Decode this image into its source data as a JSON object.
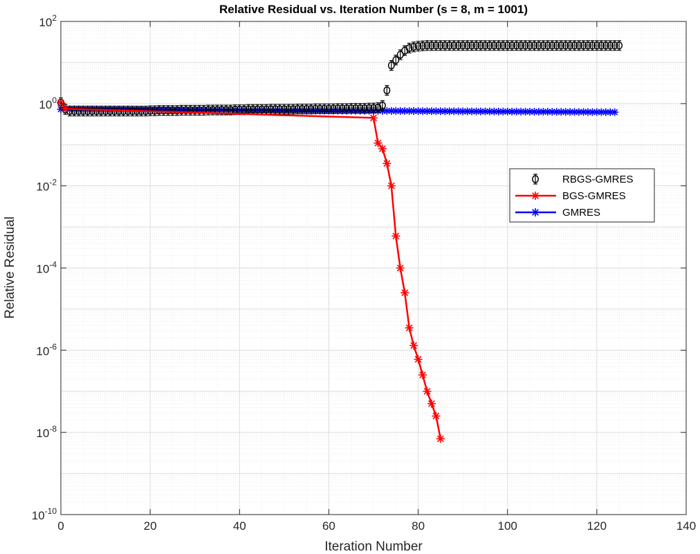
{
  "chart_data": {
    "type": "line",
    "title": "Relative Residual vs. Iteration Number (s = 8, m = 1001)",
    "xlabel": "Iteration Number",
    "ylabel": "Relative Residual",
    "xlim": [
      0,
      140
    ],
    "ylim_log10": [
      -10,
      2
    ],
    "yscale": "log",
    "grid": true,
    "minor_grid": true,
    "legend_position": "right",
    "xticks": [
      "0",
      "20",
      "40",
      "60",
      "80",
      "100",
      "120",
      "140"
    ],
    "yticks": [
      {
        "base": "10",
        "exp": "2"
      },
      {
        "base": "10",
        "exp": "0"
      },
      {
        "base": "10",
        "exp": "-2"
      },
      {
        "base": "10",
        "exp": "-4"
      },
      {
        "base": "10",
        "exp": "-6"
      },
      {
        "base": "10",
        "exp": "-8"
      },
      {
        "base": "10",
        "exp": "-10"
      }
    ],
    "series": [
      {
        "name": "RBGS-GMRES",
        "color": "#000000",
        "marker": "circle",
        "line": "none",
        "error_bars": true,
        "x": [
          0,
          1,
          2,
          3,
          4,
          5,
          6,
          7,
          8,
          9,
          10,
          11,
          12,
          13,
          14,
          15,
          16,
          17,
          18,
          19,
          20,
          21,
          22,
          23,
          24,
          25,
          26,
          27,
          28,
          29,
          30,
          31,
          32,
          33,
          34,
          35,
          36,
          37,
          38,
          39,
          40,
          41,
          42,
          43,
          44,
          45,
          46,
          47,
          48,
          49,
          50,
          51,
          52,
          53,
          54,
          55,
          56,
          57,
          58,
          59,
          60,
          61,
          62,
          63,
          64,
          65,
          66,
          67,
          68,
          69,
          70,
          71,
          72,
          73,
          74,
          75,
          76,
          77,
          78,
          79,
          80,
          81,
          82,
          83,
          84,
          85,
          86,
          87,
          88,
          89,
          90,
          91,
          92,
          93,
          94,
          95,
          96,
          97,
          98,
          99,
          100,
          101,
          102,
          103,
          104,
          105,
          106,
          107,
          108,
          109,
          110,
          111,
          112,
          113,
          114,
          115,
          116,
          117,
          118,
          119,
          120,
          121,
          122,
          123,
          124,
          125
        ],
        "y": [
          1.05,
          0.72,
          0.66,
          0.66,
          0.66,
          0.66,
          0.66,
          0.66,
          0.66,
          0.66,
          0.66,
          0.66,
          0.66,
          0.66,
          0.66,
          0.66,
          0.66,
          0.66,
          0.66,
          0.66,
          0.67,
          0.67,
          0.68,
          0.68,
          0.68,
          0.68,
          0.68,
          0.69,
          0.69,
          0.69,
          0.69,
          0.69,
          0.69,
          0.7,
          0.7,
          0.7,
          0.7,
          0.7,
          0.7,
          0.71,
          0.71,
          0.71,
          0.72,
          0.72,
          0.72,
          0.72,
          0.72,
          0.73,
          0.73,
          0.73,
          0.73,
          0.73,
          0.73,
          0.74,
          0.74,
          0.74,
          0.74,
          0.75,
          0.75,
          0.75,
          0.75,
          0.75,
          0.76,
          0.76,
          0.76,
          0.77,
          0.77,
          0.77,
          0.77,
          0.78,
          0.78,
          0.8,
          0.9,
          2.1,
          8.5,
          11.5,
          15.5,
          19.5,
          22.5,
          24,
          25,
          25.5,
          26,
          26,
          26,
          26,
          26,
          26,
          26,
          26,
          26,
          26,
          26,
          26,
          26,
          26,
          26,
          26,
          26,
          26,
          26,
          26,
          26,
          26,
          26,
          26,
          26,
          26,
          26,
          26,
          26,
          26,
          26,
          26,
          26,
          26,
          26,
          26,
          26,
          26,
          26,
          26,
          26,
          26,
          26,
          26
        ]
      },
      {
        "name": "BGS-GMRES",
        "color": "#ff0000",
        "marker": "asterisk",
        "line": "solid",
        "x": [
          0,
          1,
          70,
          71,
          72,
          73,
          74,
          75,
          76,
          77,
          78,
          79,
          80,
          81,
          82,
          83,
          84,
          85
        ],
        "y": [
          1.05,
          0.75,
          0.45,
          0.11,
          0.08,
          0.035,
          0.01,
          0.0006,
          0.0001,
          2.5e-05,
          3.5e-06,
          1.3e-06,
          6e-07,
          2.5e-07,
          1e-07,
          5e-08,
          2.5e-08,
          7e-09
        ]
      },
      {
        "name": "GMRES",
        "color": "#0000ff",
        "marker": "asterisk",
        "line": "solid",
        "x_start": 0,
        "x_end": 124,
        "y_start": 0.73,
        "y_end": 0.62
      }
    ]
  }
}
